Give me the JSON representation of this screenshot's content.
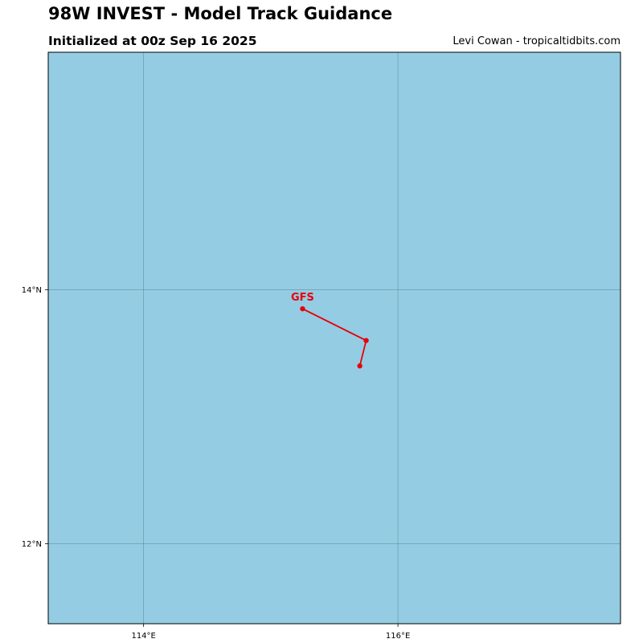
{
  "title": "98W INVEST - Model Track Guidance",
  "subtitle": "Initialized at 00z Sep 16 2025",
  "credit": "Levi Cowan - tropicaltidbits.com",
  "colors": {
    "ocean": "#94cde3",
    "grid": "#5a7f8c",
    "track": "#e8000b",
    "frame": "#000000"
  },
  "map": {
    "lon_range": [
      113.25,
      117.75
    ],
    "lat_range": [
      11.37,
      15.87
    ],
    "grid_lons": [
      114,
      116
    ],
    "grid_lats": [
      12,
      14
    ],
    "lon_labels": [
      "114°E",
      "116°E"
    ],
    "lat_labels": [
      "12°N",
      "14°N"
    ]
  },
  "tracks": [
    {
      "model": "GFS",
      "points": [
        {
          "lon": 115.25,
          "lat": 13.85
        },
        {
          "lon": 115.75,
          "lat": 13.6
        },
        {
          "lon": 115.7,
          "lat": 13.4
        }
      ]
    }
  ]
}
